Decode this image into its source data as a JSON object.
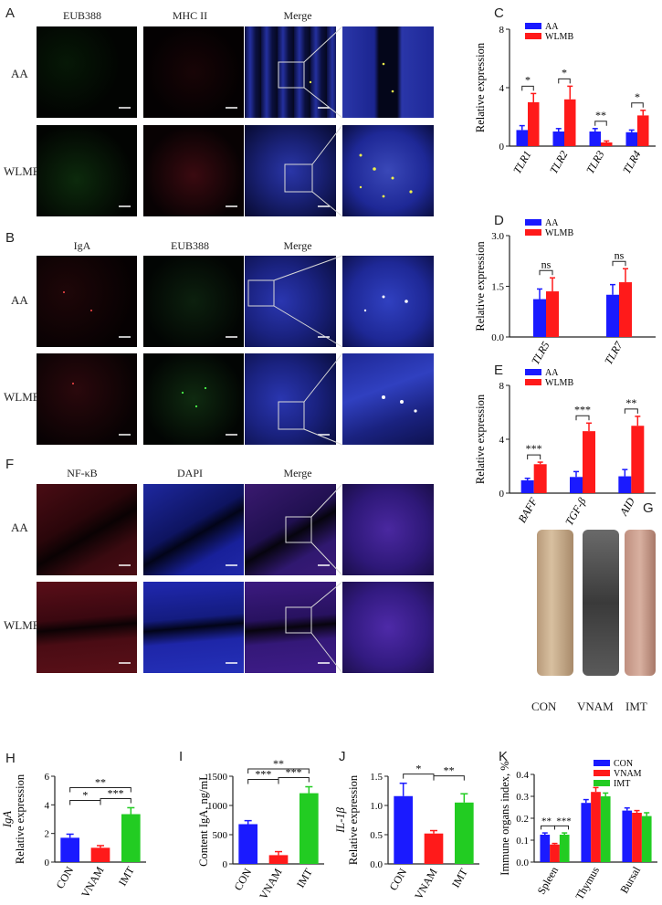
{
  "panels": {
    "A": {
      "letter": "A",
      "columns": [
        "EUB388",
        "MHC II",
        "Merge"
      ],
      "rows": [
        "AA",
        "WLMB"
      ]
    },
    "B": {
      "letter": "B",
      "columns": [
        "IgA",
        "EUB388",
        "Merge"
      ],
      "rows": [
        "AA",
        "WLMB"
      ]
    },
    "F": {
      "letter": "F",
      "columns": [
        "NF-κB",
        "DAPI",
        "Merge"
      ],
      "rows": [
        "AA",
        "WLMB"
      ]
    },
    "G": {
      "letter": "G",
      "labels": [
        "CON",
        "VNAM",
        "IMT"
      ]
    },
    "C": {
      "letter": "C"
    },
    "D": {
      "letter": "D"
    },
    "E": {
      "letter": "E"
    },
    "H": {
      "letter": "H"
    },
    "I": {
      "letter": "I"
    },
    "J": {
      "letter": "J"
    },
    "K": {
      "letter": "K"
    }
  },
  "colors": {
    "aa": "#1a1aff",
    "wlmb": "#ff1a1a",
    "con": "#1a1aff",
    "vnam": "#ff1a1a",
    "imt": "#22cc22",
    "micro_bg": "#020206",
    "dapi": "#1b22a8"
  },
  "chart_data": [
    {
      "id": "C",
      "type": "bar",
      "ylabel": "Relative expression",
      "categories": [
        "TLR1",
        "TLR2",
        "TLR3",
        "TLR4"
      ],
      "ylim": [
        0,
        8
      ],
      "yticks": [
        "0",
        "4",
        "8"
      ],
      "legend": [
        "AA",
        "WLMB"
      ],
      "series": [
        {
          "name": "AA",
          "values": [
            1.1,
            1.0,
            1.0,
            0.95
          ],
          "errors": [
            0.3,
            0.2,
            0.2,
            0.15
          ]
        },
        {
          "name": "WLMB",
          "values": [
            3.0,
            3.2,
            0.25,
            2.1
          ],
          "errors": [
            0.6,
            0.9,
            0.1,
            0.35
          ]
        }
      ],
      "significance": [
        "*",
        "*",
        "**",
        "*"
      ]
    },
    {
      "id": "D",
      "type": "bar",
      "ylabel": "Relative expression",
      "categories": [
        "TLR5",
        "TLR7"
      ],
      "ylim": [
        0,
        3.0
      ],
      "yticks": [
        "0.0",
        "1.5",
        "3.0"
      ],
      "legend": [
        "AA",
        "WLMB"
      ],
      "series": [
        {
          "name": "AA",
          "values": [
            1.12,
            1.25
          ],
          "errors": [
            0.3,
            0.3
          ]
        },
        {
          "name": "WLMB",
          "values": [
            1.35,
            1.62
          ],
          "errors": [
            0.4,
            0.4
          ]
        }
      ],
      "significance": [
        "ns",
        "ns"
      ]
    },
    {
      "id": "E",
      "type": "bar",
      "ylabel": "Relative expression",
      "categories": [
        "BAFF",
        "TGF-β",
        "AID"
      ],
      "ylim": [
        0,
        8
      ],
      "yticks": [
        "0",
        "4",
        "8"
      ],
      "legend": [
        "AA",
        "WLMB"
      ],
      "series": [
        {
          "name": "AA",
          "values": [
            0.95,
            1.2,
            1.25
          ],
          "errors": [
            0.15,
            0.4,
            0.5
          ]
        },
        {
          "name": "WLMB",
          "values": [
            2.15,
            4.6,
            5.0
          ],
          "errors": [
            0.15,
            0.6,
            0.7
          ]
        }
      ],
      "significance": [
        "***",
        "***",
        "**"
      ]
    },
    {
      "id": "H",
      "type": "bar",
      "ylabel": "Relative expression",
      "ylabel_gene": "IgA",
      "categories": [
        "CON",
        "VNAM",
        "IMT"
      ],
      "ylim": [
        0,
        6
      ],
      "yticks": [
        "0",
        "2",
        "4",
        "6"
      ],
      "values": [
        1.7,
        1.0,
        3.35
      ],
      "errors": [
        0.25,
        0.15,
        0.45
      ],
      "brackets": [
        {
          "from": 0,
          "to": 2,
          "label": "**"
        },
        {
          "from": 0,
          "to": 1,
          "label": "*"
        },
        {
          "from": 1,
          "to": 2,
          "label": "***"
        }
      ]
    },
    {
      "id": "I",
      "type": "bar",
      "ylabel": "Content IgA, ng/mL",
      "categories": [
        "CON",
        "VNAM",
        "IMT"
      ],
      "ylim": [
        0,
        1500
      ],
      "yticks": [
        "0",
        "500",
        "1000",
        "1500"
      ],
      "values": [
        680,
        150,
        1210
      ],
      "errors": [
        60,
        60,
        110
      ],
      "brackets": [
        {
          "from": 0,
          "to": 2,
          "label": "**"
        },
        {
          "from": 0,
          "to": 1,
          "label": "***"
        },
        {
          "from": 1,
          "to": 2,
          "label": "***"
        }
      ]
    },
    {
      "id": "J",
      "type": "bar",
      "ylabel": "Relative expression",
      "ylabel_gene": "IL-1β",
      "categories": [
        "CON",
        "VNAM",
        "IMT"
      ],
      "ylim": [
        0,
        1.5
      ],
      "yticks": [
        "0.0",
        "0.5",
        "1.0",
        "1.5"
      ],
      "values": [
        1.16,
        0.52,
        1.05
      ],
      "errors": [
        0.22,
        0.05,
        0.15
      ],
      "brackets": [
        {
          "from": 0,
          "to": 1,
          "label": "*"
        },
        {
          "from": 1,
          "to": 2,
          "label": "**"
        }
      ]
    },
    {
      "id": "K",
      "type": "bar",
      "ylabel": "Immune organs index, %",
      "categories": [
        "Spleen",
        "Thymus",
        "Bursal"
      ],
      "ylim": [
        0,
        0.4
      ],
      "yticks": [
        "0.0",
        "0.1",
        "0.2",
        "0.3",
        "0.4"
      ],
      "legend": [
        "CON",
        "VNAM",
        "IMT"
      ],
      "series": [
        {
          "name": "CON",
          "values": [
            0.125,
            0.27,
            0.235
          ],
          "errors": [
            0.008,
            0.015,
            0.012
          ]
        },
        {
          "name": "VNAM",
          "values": [
            0.08,
            0.32,
            0.225
          ],
          "errors": [
            0.005,
            0.02,
            0.01
          ]
        },
        {
          "name": "IMT",
          "values": [
            0.125,
            0.3,
            0.21
          ],
          "errors": [
            0.008,
            0.015,
            0.015
          ]
        }
      ],
      "significance_labels": [
        "**",
        "***"
      ]
    }
  ]
}
